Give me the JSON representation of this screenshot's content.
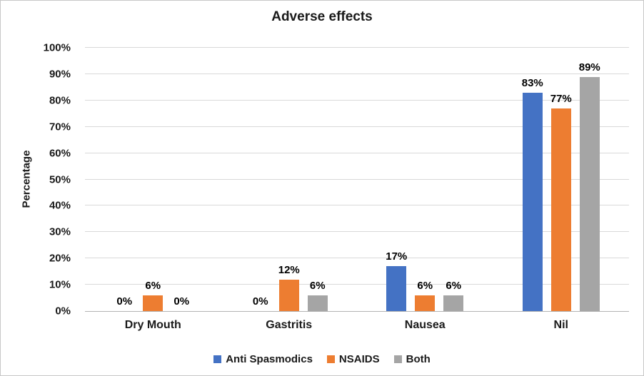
{
  "chart_data": {
    "type": "bar",
    "title": "Adverse effects",
    "xlabel": "",
    "ylabel": "Percentage",
    "categories": [
      "Dry Mouth",
      "Gastritis",
      "Nausea",
      "Nil"
    ],
    "series": [
      {
        "name": "Anti Spasmodics",
        "color": "#4472C4",
        "values": [
          0,
          0,
          17,
          83
        ]
      },
      {
        "name": "NSAIDS",
        "color": "#ED7D31",
        "values": [
          6,
          12,
          6,
          77
        ]
      },
      {
        "name": "Both",
        "color": "#A5A5A5",
        "values": [
          0,
          6,
          6,
          89
        ]
      }
    ],
    "ylim": [
      0,
      100
    ],
    "ytick_step": 10,
    "ytick_suffix": "%",
    "data_label_suffix": "%",
    "grid": true,
    "legend_position": "bottom"
  }
}
